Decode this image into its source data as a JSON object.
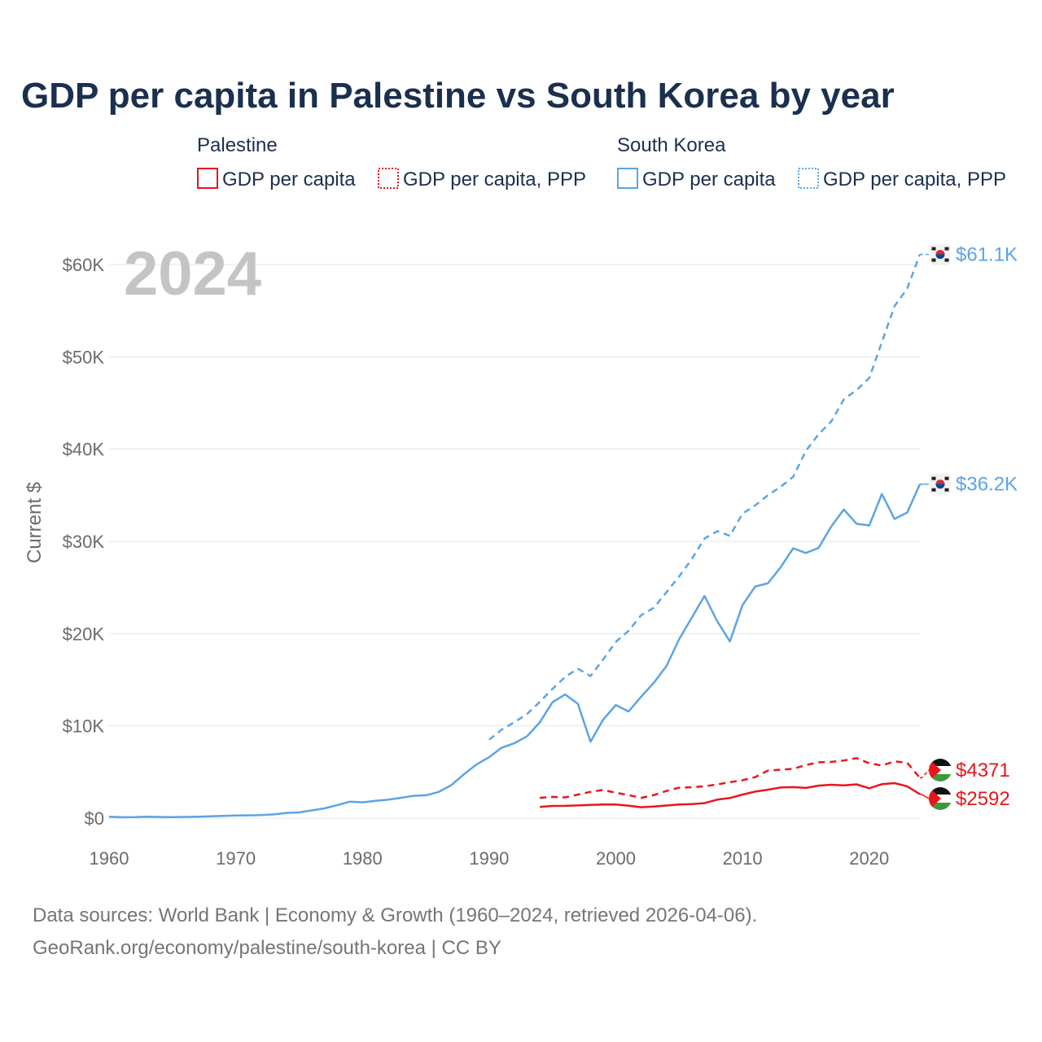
{
  "title": "GDP per capita in Palestine vs South Korea by year",
  "legend": {
    "groups": [
      {
        "name": "Palestine",
        "color": "#e8161b",
        "items": [
          {
            "label": "GDP per capita",
            "style": "solid"
          },
          {
            "label": "GDP per capita, PPP",
            "style": "dotted"
          }
        ]
      },
      {
        "name": "South Korea",
        "color": "#5ba4e5",
        "items": [
          {
            "label": "GDP per capita",
            "style": "solid"
          },
          {
            "label": "GDP per capita, PPP",
            "style": "dotted"
          }
        ]
      }
    ]
  },
  "year_label": "2024",
  "ylabel": "Current $",
  "source": {
    "line1": "Data sources: World Bank | Economy & Growth (1960–2024, retrieved 2026-04-06).",
    "line2": "GeoRank.org/economy/palestine/south-korea | CC BY"
  },
  "chart_data": {
    "type": "line",
    "title": "GDP per capita in Palestine vs South Korea by year",
    "xlabel": "",
    "ylabel": "Current $",
    "xlim": [
      1960,
      2024
    ],
    "ylim": [
      0,
      60000
    ],
    "x_ticks": [
      1960,
      1970,
      1980,
      1990,
      2000,
      2010,
      2020
    ],
    "y_ticks": [
      0,
      10000,
      20000,
      30000,
      40000,
      50000,
      60000
    ],
    "y_tick_labels": [
      "$0",
      "$10K",
      "$20K",
      "$30K",
      "$40K",
      "$50K",
      "$60K"
    ],
    "grid": true,
    "series": [
      {
        "name": "South Korea GDP per capita",
        "country": "South Korea",
        "color": "#5ba4e5",
        "dash": "solid",
        "end_label": "$36.2K",
        "x": [
          1960,
          1961,
          1962,
          1963,
          1964,
          1965,
          1966,
          1967,
          1968,
          1969,
          1970,
          1971,
          1972,
          1973,
          1974,
          1975,
          1976,
          1977,
          1978,
          1979,
          1980,
          1981,
          1982,
          1983,
          1984,
          1985,
          1986,
          1987,
          1988,
          1989,
          1990,
          1991,
          1992,
          1993,
          1994,
          1995,
          1996,
          1997,
          1998,
          1999,
          2000,
          2001,
          2002,
          2003,
          2004,
          2005,
          2006,
          2007,
          2008,
          2009,
          2010,
          2011,
          2012,
          2013,
          2014,
          2015,
          2016,
          2017,
          2018,
          2019,
          2020,
          2021,
          2022,
          2023,
          2024
        ],
        "values": [
          158,
          93,
          106,
          146,
          124,
          108,
          133,
          161,
          198,
          244,
          279,
          301,
          323,
          406,
          563,
          617,
          834,
          1055,
          1405,
          1783,
          1715,
          1883,
          1992,
          2199,
          2413,
          2482,
          2835,
          3555,
          4749,
          5817,
          6610,
          7637,
          8127,
          8885,
          10385,
          12565,
          13403,
          12398,
          8282,
          10673,
          12257,
          11561,
          13165,
          14673,
          16496,
          19403,
          21743,
          24086,
          21350,
          19144,
          23087,
          25100,
          25459,
          27180,
          29250,
          28737,
          29288,
          31616,
          33447,
          31902,
          31721,
          35126,
          32423,
          33121,
          36200
        ]
      },
      {
        "name": "South Korea GDP per capita, PPP",
        "country": "South Korea",
        "color": "#5ba4e5",
        "dash": "dashed",
        "end_label": "$61.1K",
        "x": [
          1990,
          1991,
          1992,
          1993,
          1994,
          1995,
          1996,
          1997,
          1998,
          1999,
          2000,
          2001,
          2002,
          2003,
          2004,
          2005,
          2006,
          2007,
          2008,
          2009,
          2010,
          2011,
          2012,
          2013,
          2014,
          2015,
          2016,
          2017,
          2018,
          2019,
          2020,
          2021,
          2022,
          2023,
          2024
        ],
        "values": [
          8500,
          9600,
          10400,
          11300,
          12600,
          14000,
          15300,
          16200,
          15400,
          17200,
          19100,
          20300,
          22000,
          22800,
          24500,
          26200,
          28100,
          30300,
          31100,
          30600,
          33000,
          33900,
          35000,
          35900,
          37000,
          39800,
          41600,
          43000,
          45400,
          46400,
          47700,
          51600,
          55500,
          57400,
          61100
        ]
      },
      {
        "name": "Palestine GDP per capita",
        "country": "Palestine",
        "color": "#e8161b",
        "dash": "solid",
        "end_label": "$2592",
        "x": [
          1994,
          1995,
          1996,
          1997,
          1998,
          1999,
          2000,
          2001,
          2002,
          2003,
          2004,
          2005,
          2006,
          2007,
          2008,
          2009,
          2010,
          2011,
          2012,
          2013,
          2014,
          2015,
          2016,
          2017,
          2018,
          2019,
          2020,
          2021,
          2022,
          2023,
          2024
        ],
        "values": [
          1220,
          1320,
          1330,
          1380,
          1440,
          1480,
          1470,
          1350,
          1180,
          1250,
          1370,
          1480,
          1530,
          1620,
          2000,
          2180,
          2550,
          2880,
          3080,
          3320,
          3360,
          3270,
          3520,
          3620,
          3560,
          3660,
          3240,
          3680,
          3790,
          3450,
          2592
        ]
      },
      {
        "name": "Palestine GDP per capita, PPP",
        "country": "Palestine",
        "color": "#e8161b",
        "dash": "dashed",
        "end_label": "$4371",
        "x": [
          1994,
          1995,
          1996,
          1997,
          1998,
          1999,
          2000,
          2001,
          2002,
          2003,
          2004,
          2005,
          2006,
          2007,
          2008,
          2009,
          2010,
          2011,
          2012,
          2013,
          2014,
          2015,
          2016,
          2017,
          2018,
          2019,
          2020,
          2021,
          2022,
          2023,
          2024
        ],
        "values": [
          2200,
          2300,
          2250,
          2550,
          2850,
          3050,
          2750,
          2500,
          2200,
          2500,
          2950,
          3300,
          3350,
          3450,
          3650,
          3900,
          4100,
          4450,
          5150,
          5250,
          5350,
          5750,
          6050,
          6100,
          6250,
          6500,
          5950,
          5700,
          6150,
          6000,
          4371
        ]
      }
    ]
  }
}
